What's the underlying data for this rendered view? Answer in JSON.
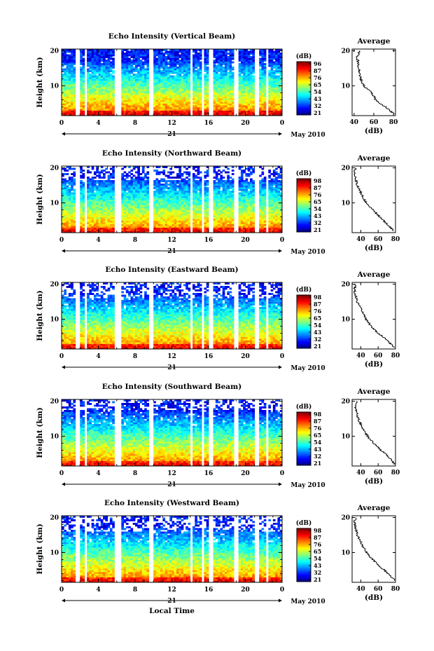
{
  "figure": {
    "xlabel": "Local Time",
    "date_label": "May 2010",
    "day_label": "21",
    "cbar_unit": "(dB)",
    "avg_title": "Average",
    "avg_xlabel": "(dB)",
    "ylabel": "Height (km)"
  },
  "chart_data": [
    {
      "type": "heatmap",
      "title": "Echo Intensity (Vertical Beam)",
      "ylabel": "Height (km)",
      "xlabel": "",
      "x_ticks": [
        "0",
        "4",
        "8",
        "12",
        "16",
        "20",
        "0"
      ],
      "xlim": [
        0,
        24
      ],
      "y_ticks": [
        "20",
        "10"
      ],
      "ylim": [
        1.5,
        20.5
      ],
      "gaps_hours": [
        [
          1.6,
          1.9
        ],
        [
          2.4,
          2.8
        ],
        [
          5.7,
          6.6
        ],
        [
          9.6,
          10.0
        ],
        [
          13.9,
          14.3
        ],
        [
          15.2,
          15.6
        ],
        [
          16.1,
          16.6
        ],
        [
          18.7,
          19.3
        ],
        [
          21.1,
          21.5
        ],
        [
          22.3,
          22.6
        ]
      ],
      "colorbar": {
        "unit": "(dB)",
        "ticks": [
          "96",
          "87",
          "76",
          "65",
          "54",
          "43",
          "32",
          "21"
        ],
        "range": [
          21,
          96
        ]
      },
      "noise_cutoff_km": 20.5,
      "average_profile": {
        "title": "Average",
        "xlabel": "(dB)",
        "x_ticks": [
          "40",
          "60",
          "80"
        ],
        "xlim": [
          38,
          82
        ],
        "y_ticks": [
          "20",
          "10"
        ],
        "ylim": [
          1.5,
          20.5
        ],
        "points": [
          [
            2,
            80
          ],
          [
            3,
            76
          ],
          [
            4,
            72
          ],
          [
            5,
            66
          ],
          [
            6,
            62
          ],
          [
            7,
            60
          ],
          [
            8,
            58
          ],
          [
            9,
            54
          ],
          [
            10,
            50
          ],
          [
            11,
            48
          ],
          [
            12,
            47
          ],
          [
            13,
            46
          ],
          [
            14,
            45
          ],
          [
            15,
            45
          ],
          [
            16,
            44
          ],
          [
            17,
            44
          ],
          [
            18,
            43
          ],
          [
            19,
            44
          ],
          [
            20,
            46
          ]
        ]
      }
    },
    {
      "type": "heatmap",
      "title": "Echo Intensity (Northward Beam)",
      "ylabel": "Height (km)",
      "xlabel": "",
      "x_ticks": [
        "0",
        "4",
        "8",
        "12",
        "16",
        "20",
        "0"
      ],
      "xlim": [
        0,
        24
      ],
      "y_ticks": [
        "20",
        "10"
      ],
      "ylim": [
        1.5,
        20.5
      ],
      "gaps_hours": [
        [
          1.6,
          1.9
        ],
        [
          2.4,
          2.8
        ],
        [
          5.7,
          6.6
        ],
        [
          9.6,
          10.0
        ],
        [
          13.9,
          14.3
        ],
        [
          15.2,
          15.6
        ],
        [
          16.1,
          16.6
        ],
        [
          18.7,
          19.3
        ],
        [
          21.1,
          21.5
        ],
        [
          22.3,
          22.6
        ]
      ],
      "colorbar": {
        "unit": "(dB)",
        "ticks": [
          "98",
          "87",
          "76",
          "65",
          "54",
          "43",
          "32",
          "21"
        ],
        "range": [
          21,
          98
        ]
      },
      "noise_cutoff_km": 16.5,
      "average_profile": {
        "title": "Average",
        "xlabel": "(dB)",
        "x_ticks": [
          "40",
          "60",
          "80"
        ],
        "xlim": [
          30,
          80
        ],
        "y_ticks": [
          "20",
          "10"
        ],
        "ylim": [
          1.5,
          20.5
        ],
        "points": [
          [
            2,
            78
          ],
          [
            3,
            74
          ],
          [
            4,
            70
          ],
          [
            5,
            66
          ],
          [
            6,
            62
          ],
          [
            7,
            58
          ],
          [
            8,
            54
          ],
          [
            9,
            50
          ],
          [
            10,
            46
          ],
          [
            11,
            44
          ],
          [
            12,
            42
          ],
          [
            13,
            40
          ],
          [
            14,
            38
          ],
          [
            15,
            36
          ],
          [
            16,
            35
          ],
          [
            17,
            34
          ],
          [
            18,
            33
          ],
          [
            19,
            33
          ],
          [
            20,
            34
          ]
        ]
      }
    },
    {
      "type": "heatmap",
      "title": "Echo Intensity (Eastward Beam)",
      "ylabel": "Height (km)",
      "xlabel": "",
      "x_ticks": [
        "0",
        "4",
        "8",
        "12",
        "16",
        "20",
        "0"
      ],
      "xlim": [
        0,
        24
      ],
      "y_ticks": [
        "20",
        "10"
      ],
      "ylim": [
        1.5,
        20.5
      ],
      "gaps_hours": [
        [
          1.6,
          1.9
        ],
        [
          2.4,
          2.8
        ],
        [
          5.7,
          6.6
        ],
        [
          9.6,
          10.0
        ],
        [
          13.9,
          14.3
        ],
        [
          15.2,
          15.6
        ],
        [
          16.1,
          16.6
        ],
        [
          18.7,
          19.3
        ],
        [
          21.1,
          21.5
        ],
        [
          22.3,
          22.6
        ]
      ],
      "colorbar": {
        "unit": "(dB)",
        "ticks": [
          "98",
          "87",
          "76",
          "65",
          "54",
          "43",
          "32",
          "21"
        ],
        "range": [
          21,
          98
        ]
      },
      "noise_cutoff_km": 16.0,
      "average_profile": {
        "title": "Average",
        "xlabel": "(dB)",
        "x_ticks": [
          "40",
          "60",
          "80"
        ],
        "xlim": [
          30,
          80
        ],
        "y_ticks": [
          "20",
          "10"
        ],
        "ylim": [
          1.5,
          20.5
        ],
        "points": [
          [
            2,
            78
          ],
          [
            3,
            74
          ],
          [
            4,
            70
          ],
          [
            5,
            66
          ],
          [
            6,
            60
          ],
          [
            7,
            56
          ],
          [
            8,
            52
          ],
          [
            9,
            49
          ],
          [
            10,
            46
          ],
          [
            11,
            44
          ],
          [
            12,
            42
          ],
          [
            13,
            40
          ],
          [
            14,
            38
          ],
          [
            15,
            36
          ],
          [
            16,
            35
          ],
          [
            17,
            34
          ],
          [
            18,
            33
          ],
          [
            19,
            33
          ],
          [
            20,
            34
          ]
        ]
      }
    },
    {
      "type": "heatmap",
      "title": "Echo Intensity (Southward Beam)",
      "ylabel": "Height (km)",
      "xlabel": "",
      "x_ticks": [
        "0",
        "4",
        "8",
        "12",
        "16",
        "20",
        "0"
      ],
      "xlim": [
        0,
        24
      ],
      "y_ticks": [
        "20",
        "10"
      ],
      "ylim": [
        1.5,
        20.5
      ],
      "gaps_hours": [
        [
          1.6,
          1.9
        ],
        [
          2.4,
          2.8
        ],
        [
          5.7,
          6.6
        ],
        [
          9.6,
          10.0
        ],
        [
          13.9,
          14.3
        ],
        [
          15.2,
          15.6
        ],
        [
          16.1,
          16.6
        ],
        [
          18.7,
          19.3
        ],
        [
          21.1,
          21.5
        ],
        [
          22.3,
          22.6
        ]
      ],
      "colorbar": {
        "unit": "(dB)",
        "ticks": [
          "98",
          "87",
          "76",
          "65",
          "54",
          "43",
          "32",
          "21"
        ],
        "range": [
          21,
          98
        ]
      },
      "noise_cutoff_km": 17.5,
      "average_profile": {
        "title": "Average",
        "xlabel": "(dB)",
        "x_ticks": [
          "40",
          "60",
          "80"
        ],
        "xlim": [
          30,
          80
        ],
        "y_ticks": [
          "20",
          "10"
        ],
        "ylim": [
          1.5,
          20.5
        ],
        "points": [
          [
            2,
            79
          ],
          [
            3,
            76
          ],
          [
            4,
            72
          ],
          [
            5,
            68
          ],
          [
            6,
            63
          ],
          [
            7,
            59
          ],
          [
            8,
            55
          ],
          [
            9,
            51
          ],
          [
            10,
            48
          ],
          [
            11,
            45
          ],
          [
            12,
            43
          ],
          [
            13,
            41
          ],
          [
            14,
            39
          ],
          [
            15,
            37
          ],
          [
            16,
            36
          ],
          [
            17,
            35
          ],
          [
            18,
            34
          ],
          [
            19,
            34
          ],
          [
            20,
            35
          ]
        ]
      }
    },
    {
      "type": "heatmap",
      "title": "Echo Intensity (Westward Beam)",
      "ylabel": "Height (km)",
      "xlabel": "Local Time",
      "x_ticks": [
        "0",
        "4",
        "8",
        "12",
        "16",
        "20",
        "0"
      ],
      "xlim": [
        0,
        24
      ],
      "y_ticks": [
        "20",
        "10"
      ],
      "ylim": [
        1.5,
        20.5
      ],
      "gaps_hours": [
        [
          1.6,
          1.9
        ],
        [
          2.4,
          2.8
        ],
        [
          5.7,
          6.6
        ],
        [
          9.6,
          10.0
        ],
        [
          13.9,
          14.3
        ],
        [
          15.2,
          15.6
        ],
        [
          16.1,
          16.6
        ],
        [
          18.7,
          19.3
        ],
        [
          21.1,
          21.5
        ],
        [
          22.3,
          22.6
        ]
      ],
      "colorbar": {
        "unit": "(dB)",
        "ticks": [
          "98",
          "87",
          "76",
          "65",
          "54",
          "43",
          "32",
          "21"
        ],
        "range": [
          21,
          98
        ]
      },
      "noise_cutoff_km": 16.0,
      "average_profile": {
        "title": "Average",
        "xlabel": "(dB)",
        "x_ticks": [
          "40",
          "60",
          "80"
        ],
        "xlim": [
          30,
          80
        ],
        "y_ticks": [
          "20",
          "10"
        ],
        "ylim": [
          1.5,
          20.5
        ],
        "points": [
          [
            2,
            79
          ],
          [
            3,
            75
          ],
          [
            4,
            71
          ],
          [
            5,
            67
          ],
          [
            6,
            62
          ],
          [
            7,
            58
          ],
          [
            8,
            54
          ],
          [
            9,
            50
          ],
          [
            10,
            47
          ],
          [
            11,
            44
          ],
          [
            12,
            42
          ],
          [
            13,
            40
          ],
          [
            14,
            38
          ],
          [
            15,
            36
          ],
          [
            16,
            35
          ],
          [
            17,
            34
          ],
          [
            18,
            33
          ],
          [
            19,
            33
          ],
          [
            20,
            34
          ]
        ]
      }
    }
  ]
}
